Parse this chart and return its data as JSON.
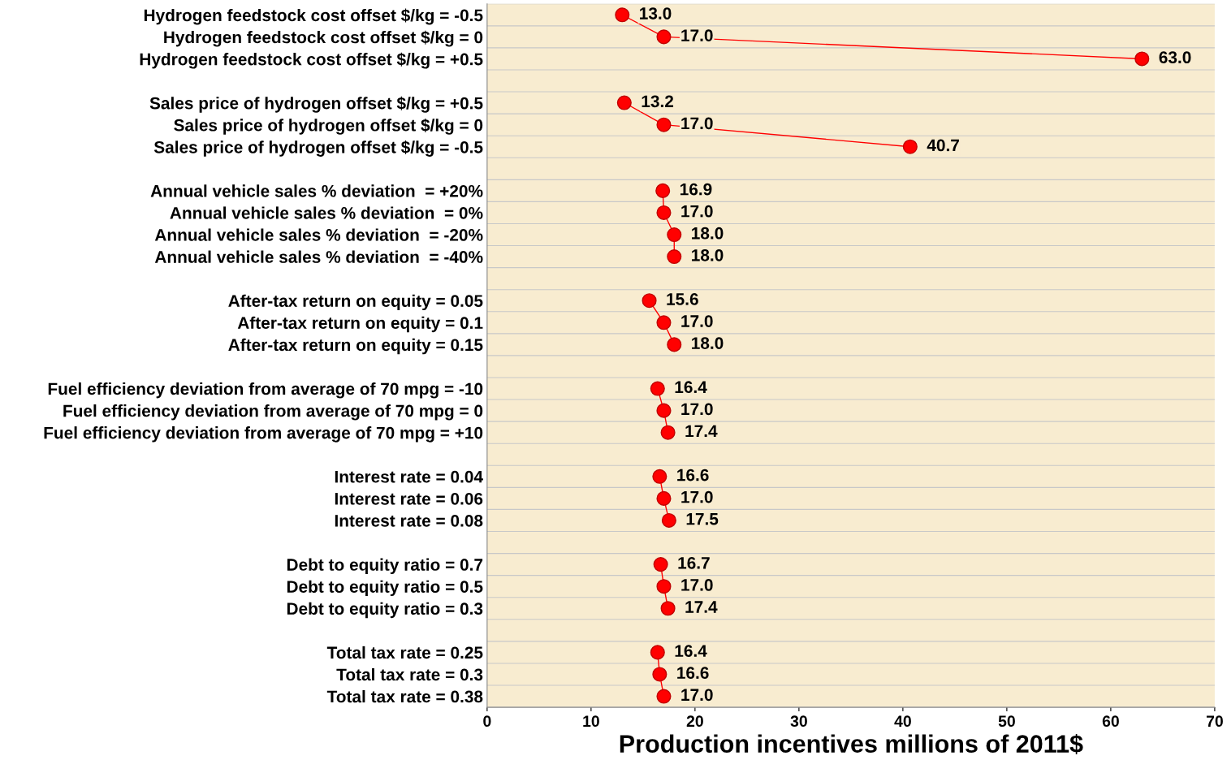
{
  "chart_data": {
    "type": "line",
    "orientation": "horizontal",
    "xlabel": "Production incentives millions of 2011$",
    "categories": [
      "Hydrogen feedstock cost offset $/kg = -0.5",
      "Hydrogen feedstock cost offset $/kg = 0",
      "Hydrogen feedstock cost offset $/kg = +0.5",
      null,
      "Sales price of hydrogen offset $/kg = +0.5",
      "Sales price of hydrogen offset $/kg = 0",
      "Sales price of hydrogen offset $/kg = -0.5",
      null,
      "Annual vehicle sales % deviation  = +20%",
      "Annual vehicle sales % deviation  = 0%",
      "Annual vehicle sales % deviation  = -20%",
      "Annual vehicle sales % deviation  = -40%",
      null,
      "After-tax return on equity = 0.05",
      "After-tax return on equity = 0.1",
      "After-tax return on equity = 0.15",
      null,
      "Fuel efficiency deviation from average of 70 mpg = -10",
      "Fuel efficiency deviation from average of 70 mpg = 0",
      "Fuel efficiency deviation from average of 70 mpg = +10",
      null,
      "Interest rate = 0.04",
      "Interest rate = 0.06",
      "Interest rate = 0.08",
      null,
      "Debt to equity ratio = 0.7",
      "Debt to equity ratio = 0.5",
      "Debt to equity ratio = 0.3",
      null,
      "Total tax rate = 0.25",
      "Total tax rate = 0.3",
      "Total tax rate = 0.38"
    ],
    "series": [
      {
        "color": "#ff0000",
        "values": [
          13.0,
          17.0,
          63.0,
          null,
          13.2,
          17.0,
          40.7,
          null,
          16.9,
          17.0,
          18.0,
          18.0,
          null,
          15.6,
          17.0,
          18.0,
          null,
          16.4,
          17.0,
          17.4,
          null,
          16.6,
          17.0,
          17.5,
          null,
          16.7,
          17.0,
          17.4,
          null,
          16.4,
          16.6,
          17.0
        ],
        "value_labels": [
          "13.0",
          "17.0",
          "63.0",
          null,
          "13.2",
          "17.0",
          "40.7",
          null,
          "16.9",
          "17.0",
          "18.0",
          "18.0",
          null,
          "15.6",
          "17.0",
          "18.0",
          null,
          "16.4",
          "17.0",
          "17.4",
          null,
          "16.6",
          "17.0",
          "17.5",
          null,
          "16.7",
          "17.0",
          "17.4",
          null,
          "16.4",
          "16.6",
          "17.0"
        ]
      }
    ],
    "xlim": [
      0,
      70
    ],
    "xticks": [
      0,
      10,
      20,
      30,
      40,
      50,
      60,
      70
    ],
    "marker": "circle",
    "line_style": "solid",
    "grid": "y"
  }
}
